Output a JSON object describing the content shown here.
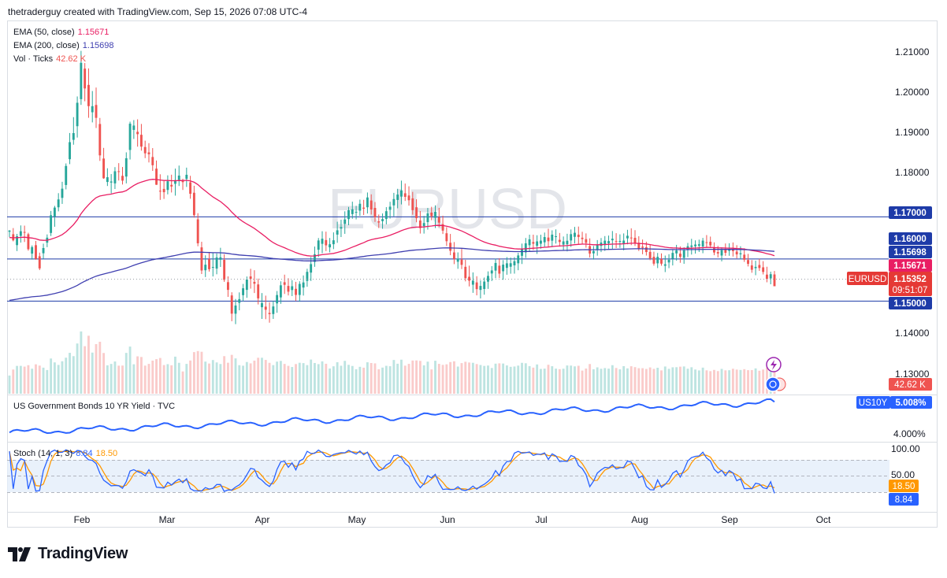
{
  "header": {
    "attribution": "thetraderguy created with TradingView.com, Sep 15, 2026 07:08 UTC-4"
  },
  "watermark": "EURUSD",
  "legend": {
    "ema50": {
      "label": "EMA (50, close)",
      "value": "1.15671",
      "color": "#e91e63"
    },
    "ema200": {
      "label": "EMA (200, close)",
      "value": "1.15698",
      "color": "#3f3fb0"
    },
    "vol": {
      "label": "Vol · Ticks",
      "value": "42.62 K",
      "color": "#ef5350"
    }
  },
  "bond_panel": {
    "label": "US Government Bonds 10 YR Yield · TVC",
    "symbol": "US10Y",
    "value": "5.008%",
    "tick": "4.000%",
    "color": "#2962ff"
  },
  "stoch_panel": {
    "label": "Stoch (14, 1, 3)",
    "k": "8.84",
    "d": "18.50",
    "k_color": "#2962ff",
    "d_color": "#ff9800",
    "ticks": [
      "100.00",
      "50.00"
    ]
  },
  "price_axis": {
    "ticks": [
      "1.21000",
      "1.20000",
      "1.19000",
      "1.18000",
      "1.14000",
      "1.13000"
    ],
    "levels": [
      "1.17000",
      "1.16000",
      "1.15000"
    ],
    "tags": {
      "ema200": "1.15698",
      "ema50": "1.15671",
      "symbol": "EURUSD",
      "price": "1.15352",
      "countdown": "09:51:07",
      "volume": "42.62 K"
    }
  },
  "time_axis": [
    "Feb",
    "Mar",
    "Apr",
    "May",
    "Jun",
    "Jul",
    "Aug",
    "Sep",
    "Oct"
  ],
  "footer": {
    "brand": "TradingView"
  },
  "chart_data": {
    "type": "candlestick",
    "symbol": "EURUSD",
    "timeframe": "daily",
    "ylim": [
      1.128,
      1.214
    ],
    "horizontal_levels": [
      1.17,
      1.16,
      1.15
    ],
    "last_price": 1.15352,
    "ema50_last": 1.15671,
    "ema200_last": 1.15698,
    "candles": [
      [
        1.16646,
        1.16683,
        1.16521,
        1.16674
      ],
      [
        1.16587,
        1.16733,
        1.16418,
        1.16442
      ],
      [
        1.16328,
        1.16595,
        1.16188,
        1.16539
      ],
      [
        1.16548,
        1.16796,
        1.16388,
        1.16658
      ],
      [
        1.16641,
        1.16791,
        1.16402,
        1.16635
      ],
      [
        1.16587,
        1.16622,
        1.16197,
        1.16232
      ],
      [
        1.16127,
        1.16321,
        1.15985,
        1.16281
      ],
      [
        1.16327,
        1.16428,
        1.15981,
        1.16
      ],
      [
        1.16063,
        1.1615,
        1.15735,
        1.15775
      ],
      [
        1.16135,
        1.16363,
        1.16001,
        1.16259
      ],
      [
        1.16387,
        1.16582,
        1.1628,
        1.16505
      ],
      [
        1.16617,
        1.17139,
        1.16544,
        1.17038
      ],
      [
        1.17008,
        1.1726,
        1.16764,
        1.17219
      ],
      [
        1.17227,
        1.17562,
        1.1713,
        1.17413
      ],
      [
        1.1745,
        1.17832,
        1.17307,
        1.17668
      ],
      [
        1.17756,
        1.18268,
        1.17652,
        1.18208
      ],
      [
        1.18368,
        1.1899,
        1.18251,
        1.18773
      ],
      [
        1.18828,
        1.19367,
        1.18712,
        1.18988
      ],
      [
        1.19152,
        1.19858,
        1.18882,
        1.19708
      ],
      [
        1.19794,
        1.2094,
        1.19658,
        1.20657
      ],
      [
        1.20519,
        1.20651,
        1.19744,
        1.20048
      ],
      [
        1.20132,
        1.20524,
        1.19351,
        1.19628
      ],
      [
        1.19483,
        1.19987,
        1.19242,
        1.19627
      ],
      [
        1.19656,
        1.20069,
        1.19109,
        1.1935
      ],
      [
        1.19204,
        1.19348,
        1.18328,
        1.18459
      ],
      [
        1.18384,
        1.18637,
        1.17902,
        1.17915
      ],
      [
        1.17828,
        1.18153,
        1.17732,
        1.1794
      ],
      [
        1.17814,
        1.18015,
        1.17558,
        1.17839
      ],
      [
        1.17794,
        1.1818,
        1.17661,
        1.18082
      ],
      [
        1.18083,
        1.18275,
        1.17862,
        1.18065
      ],
      [
        1.17973,
        1.18183,
        1.17767,
        1.17859
      ],
      [
        1.17956,
        1.18531,
        1.17794,
        1.18391
      ],
      [
        1.18588,
        1.19259,
        1.18361,
        1.19211
      ],
      [
        1.19064,
        1.19297,
        1.18849,
        1.19167
      ],
      [
        1.19018,
        1.19315,
        1.18666,
        1.18963
      ],
      [
        1.18948,
        1.19205,
        1.18571,
        1.18667
      ],
      [
        1.18657,
        1.18808,
        1.18394,
        1.18508
      ],
      [
        1.1853,
        1.18749,
        1.18291,
        1.18486
      ],
      [
        1.1842,
        1.18632,
        1.18091,
        1.18225
      ],
      [
        1.18144,
        1.18337,
        1.17759,
        1.17761
      ],
      [
        1.17618,
        1.1801,
        1.17402,
        1.17605
      ],
      [
        1.17663,
        1.17853,
        1.17425,
        1.17585
      ],
      [
        1.17638,
        1.17985,
        1.17534,
        1.17844
      ],
      [
        1.17759,
        1.18,
        1.17578,
        1.1772
      ],
      [
        1.17784,
        1.18145,
        1.17503,
        1.17871
      ],
      [
        1.17879,
        1.18217,
        1.17732,
        1.17979
      ],
      [
        1.17852,
        1.17904,
        1.17638,
        1.17823
      ],
      [
        1.17901,
        1.18168,
        1.1771,
        1.17998
      ],
      [
        1.17819,
        1.17974,
        1.1743,
        1.17547
      ],
      [
        1.17572,
        1.17738,
        1.16981,
        1.1704
      ],
      [
        1.1694,
        1.17086,
        1.16302,
        1.16372
      ],
      [
        1.16275,
        1.16408,
        1.15642,
        1.15726
      ],
      [
        1.15732,
        1.16086,
        1.1557,
        1.15863
      ],
      [
        1.15995,
        1.16167,
        1.157,
        1.15756
      ],
      [
        1.15808,
        1.1614,
        1.15584,
        1.1581
      ],
      [
        1.15771,
        1.16131,
        1.15636,
        1.16036
      ],
      [
        1.15981,
        1.16265,
        1.1581,
        1.16039
      ],
      [
        1.15979,
        1.16111,
        1.15456,
        1.15504
      ],
      [
        1.15449,
        1.15586,
        1.15099,
        1.15266
      ],
      [
        1.15134,
        1.15209,
        1.14522,
        1.14701
      ],
      [
        1.147,
        1.1505,
        1.14452,
        1.14894
      ],
      [
        1.14957,
        1.15206,
        1.14781,
        1.15046
      ],
      [
        1.1514,
        1.15407,
        1.14995,
        1.15304
      ],
      [
        1.15266,
        1.15583,
        1.15077,
        1.15511
      ],
      [
        1.15585,
        1.15766,
        1.15295,
        1.15528
      ],
      [
        1.15456,
        1.15732,
        1.15191,
        1.15412
      ],
      [
        1.15395,
        1.15534,
        1.1492,
        1.15064
      ],
      [
        1.14854,
        1.1519,
        1.14576,
        1.1495
      ],
      [
        1.14868,
        1.15129,
        1.1457,
        1.14795
      ],
      [
        1.14719,
        1.14972,
        1.14487,
        1.1469
      ],
      [
        1.14692,
        1.15003,
        1.14576,
        1.14872
      ],
      [
        1.14945,
        1.15238,
        1.14722,
        1.15143
      ],
      [
        1.15087,
        1.15469,
        1.14935,
        1.15374
      ],
      [
        1.15447,
        1.15627,
        1.1517,
        1.15386
      ],
      [
        1.15359,
        1.15542,
        1.15134,
        1.15223
      ],
      [
        1.15262,
        1.15497,
        1.15118,
        1.15352
      ],
      [
        1.15291,
        1.15457,
        1.15003,
        1.15146
      ],
      [
        1.15145,
        1.1547,
        1.14983,
        1.15407
      ],
      [
        1.15321,
        1.15609,
        1.15131,
        1.15442
      ],
      [
        1.15479,
        1.15767,
        1.1534,
        1.15694
      ],
      [
        1.15676,
        1.16045,
        1.15477,
        1.15877
      ],
      [
        1.1593,
        1.16294,
        1.15813,
        1.1611
      ],
      [
        1.16219,
        1.16497,
        1.16045,
        1.16439
      ],
      [
        1.16359,
        1.16658,
        1.16136,
        1.1648
      ],
      [
        1.16448,
        1.16648,
        1.16187,
        1.16323
      ],
      [
        1.16275,
        1.16498,
        1.16157,
        1.16349
      ],
      [
        1.1635,
        1.16631,
        1.16234,
        1.16443
      ],
      [
        1.16578,
        1.16884,
        1.16383,
        1.1668
      ],
      [
        1.16721,
        1.16931,
        1.1652,
        1.16756
      ],
      [
        1.16833,
        1.17131,
        1.16596,
        1.16937
      ],
      [
        1.16947,
        1.17235,
        1.16801,
        1.17156
      ],
      [
        1.17065,
        1.1736,
        1.16955,
        1.17179
      ],
      [
        1.17099,
        1.17261,
        1.16939,
        1.17118
      ],
      [
        1.17147,
        1.17409,
        1.17025,
        1.1731
      ],
      [
        1.17219,
        1.17404,
        1.17043,
        1.17192
      ],
      [
        1.17227,
        1.17578,
        1.17079,
        1.1746
      ],
      [
        1.17388,
        1.17534,
        1.17054,
        1.17174
      ],
      [
        1.17212,
        1.17351,
        1.1688,
        1.16993
      ],
      [
        1.16893,
        1.17055,
        1.16734,
        1.16865
      ],
      [
        1.16897,
        1.1708,
        1.16716,
        1.16947
      ],
      [
        1.16949,
        1.1723,
        1.16821,
        1.17134
      ],
      [
        1.17167,
        1.17358,
        1.16959,
        1.17241
      ],
      [
        1.17272,
        1.17569,
        1.17012,
        1.17422
      ],
      [
        1.17401,
        1.17665,
        1.17203,
        1.17528
      ],
      [
        1.1748,
        1.1786,
        1.17295,
        1.17628
      ],
      [
        1.17559,
        1.1779,
        1.17377,
        1.17474
      ],
      [
        1.17507,
        1.17725,
        1.17266,
        1.17394
      ],
      [
        1.17438,
        1.17593,
        1.1705,
        1.17159
      ],
      [
        1.17227,
        1.17417,
        1.16871,
        1.16969
      ],
      [
        1.16912,
        1.17138,
        1.16603,
        1.16733
      ],
      [
        1.16778,
        1.17023,
        1.16602,
        1.16853
      ],
      [
        1.16875,
        1.17211,
        1.16696,
        1.17082
      ],
      [
        1.171,
        1.17238,
        1.1692,
        1.17015
      ],
      [
        1.16977,
        1.17272,
        1.16734,
        1.1712
      ],
      [
        1.16994,
        1.17213,
        1.16754,
        1.16863
      ],
      [
        1.16825,
        1.17026,
        1.16593,
        1.16672
      ],
      [
        1.1661,
        1.16755,
        1.16308,
        1.16421
      ],
      [
        1.16384,
        1.16594,
        1.16089,
        1.16195
      ],
      [
        1.16155,
        1.16401,
        1.15877,
        1.15998
      ],
      [
        1.15934,
        1.16156,
        1.15766,
        1.16007
      ],
      [
        1.15985,
        1.16238,
        1.1576,
        1.1586
      ],
      [
        1.15813,
        1.1598,
        1.15468,
        1.15544
      ],
      [
        1.15576,
        1.15841,
        1.15348,
        1.15484
      ],
      [
        1.15389,
        1.15681,
        1.15195,
        1.15485
      ],
      [
        1.15443,
        1.1559,
        1.15136,
        1.15283
      ],
      [
        1.15265,
        1.15492,
        1.15062,
        1.1536
      ],
      [
        1.15287,
        1.15559,
        1.15152,
        1.15463
      ],
      [
        1.1546,
        1.15705,
        1.15289,
        1.15598
      ],
      [
        1.15655,
        1.1583,
        1.15476,
        1.15727
      ],
      [
        1.15723,
        1.16007,
        1.15543,
        1.15905
      ],
      [
        1.1584,
        1.16017,
        1.15545,
        1.15651
      ],
      [
        1.15708,
        1.15973,
        1.15506,
        1.15865
      ],
      [
        1.15788,
        1.16044,
        1.15625,
        1.15896
      ],
      [
        1.15815,
        1.16033,
        1.1565,
        1.15898
      ],
      [
        1.15848,
        1.16043,
        1.15651,
        1.15947
      ],
      [
        1.15897,
        1.16146,
        1.15732,
        1.16083
      ],
      [
        1.16074,
        1.16365,
        1.1588,
        1.16237
      ],
      [
        1.16157,
        1.16498,
        1.16024,
        1.16371
      ],
      [
        1.16326,
        1.16576,
        1.16174,
        1.16466
      ],
      [
        1.16401,
        1.16576,
        1.16213,
        1.16362
      ],
      [
        1.16313,
        1.16563,
        1.16119,
        1.16417
      ],
      [
        1.16362,
        1.16575,
        1.16245,
        1.16435
      ],
      [
        1.16396,
        1.16627,
        1.1629,
        1.1652
      ],
      [
        1.16508,
        1.16717,
        1.16281,
        1.16421
      ],
      [
        1.16434,
        1.1668,
        1.16281,
        1.16577
      ],
      [
        1.1652,
        1.16702,
        1.16365,
        1.16539
      ],
      [
        1.16453,
        1.16617,
        1.16293,
        1.16403
      ],
      [
        1.16341,
        1.16533,
        1.16197,
        1.16417
      ],
      [
        1.16349,
        1.16598,
        1.1618,
        1.16432
      ],
      [
        1.16439,
        1.167,
        1.16285,
        1.16589
      ],
      [
        1.16525,
        1.16761,
        1.16366,
        1.16622
      ],
      [
        1.16576,
        1.16769,
        1.16359,
        1.1652
      ],
      [
        1.16504,
        1.16645,
        1.16357,
        1.16472
      ],
      [
        1.1647,
        1.16607,
        1.16267,
        1.16384
      ],
      [
        1.16305,
        1.16489,
        1.16034,
        1.16127
      ],
      [
        1.16133,
        1.16307,
        1.15985,
        1.16186
      ],
      [
        1.16228,
        1.16448,
        1.16078,
        1.16332
      ],
      [
        1.1631,
        1.16497,
        1.16163,
        1.16389
      ],
      [
        1.1633,
        1.16543,
        1.16191,
        1.16434
      ],
      [
        1.16372,
        1.16555,
        1.16218,
        1.16424
      ],
      [
        1.16444,
        1.16663,
        1.16238,
        1.1648
      ],
      [
        1.16423,
        1.16612,
        1.16258,
        1.16405
      ],
      [
        1.16413,
        1.16584,
        1.16264,
        1.16427
      ],
      [
        1.16361,
        1.16606,
        1.16205,
        1.16436
      ],
      [
        1.16489,
        1.16692,
        1.16348,
        1.1655
      ],
      [
        1.16508,
        1.16726,
        1.16328,
        1.165
      ],
      [
        1.16502,
        1.16684,
        1.16308,
        1.16374
      ],
      [
        1.16385,
        1.16539,
        1.1619,
        1.16231
      ],
      [
        1.16292,
        1.16461,
        1.16112,
        1.16264
      ],
      [
        1.16279,
        1.1641,
        1.16081,
        1.16164
      ],
      [
        1.16168,
        1.16339,
        1.15971,
        1.16013
      ],
      [
        1.16052,
        1.16172,
        1.15841,
        1.15888
      ],
      [
        1.15896,
        1.16143,
        1.15783,
        1.1605
      ],
      [
        1.15999,
        1.16132,
        1.15839,
        1.15888
      ],
      [
        1.15838,
        1.1608,
        1.15688,
        1.15873
      ],
      [
        1.15917,
        1.16113,
        1.15781,
        1.15981
      ],
      [
        1.16006,
        1.16217,
        1.15846,
        1.16144
      ],
      [
        1.16132,
        1.16335,
        1.15961,
        1.16201
      ],
      [
        1.16126,
        1.16296,
        1.15909,
        1.1605
      ],
      [
        1.16025,
        1.16278,
        1.15885,
        1.16203
      ],
      [
        1.16223,
        1.1638,
        1.16044,
        1.16302
      ],
      [
        1.16285,
        1.16478,
        1.16105,
        1.16319
      ],
      [
        1.16301,
        1.16442,
        1.16127,
        1.16342
      ],
      [
        1.16313,
        1.16458,
        1.16166,
        1.16349
      ],
      [
        1.16295,
        1.16499,
        1.16136,
        1.16435
      ],
      [
        1.16397,
        1.16567,
        1.16272,
        1.1638
      ],
      [
        1.16409,
        1.16531,
        1.16258,
        1.16321
      ],
      [
        1.16268,
        1.16394,
        1.16089,
        1.16153
      ],
      [
        1.16164,
        1.16311,
        1.16036,
        1.1613
      ],
      [
        1.16081,
        1.16274,
        1.15943,
        1.16209
      ],
      [
        1.16216,
        1.16368,
        1.16074,
        1.16146
      ],
      [
        1.16193,
        1.16372,
        1.16075,
        1.16225
      ],
      [
        1.16226,
        1.16392,
        1.16057,
        1.16187
      ],
      [
        1.16176,
        1.16327,
        1.16013,
        1.16108
      ],
      [
        1.16111,
        1.16301,
        1.15997,
        1.16134
      ],
      [
        1.16101,
        1.16254,
        1.1593,
        1.15981
      ],
      [
        1.15974,
        1.16121,
        1.15822,
        1.15884
      ],
      [
        1.15846,
        1.15973,
        1.15672,
        1.15743
      ],
      [
        1.15781,
        1.15958,
        1.15614,
        1.15812
      ],
      [
        1.15857,
        1.16001,
        1.15717,
        1.15785
      ],
      [
        1.15801,
        1.15947,
        1.15632,
        1.15692
      ],
      [
        1.15628,
        1.15815,
        1.15446,
        1.15524
      ],
      [
        1.15538,
        1.15698,
        1.15399,
        1.15638
      ],
      [
        1.15632,
        1.15714,
        1.15378,
        1.15352
      ]
    ]
  }
}
